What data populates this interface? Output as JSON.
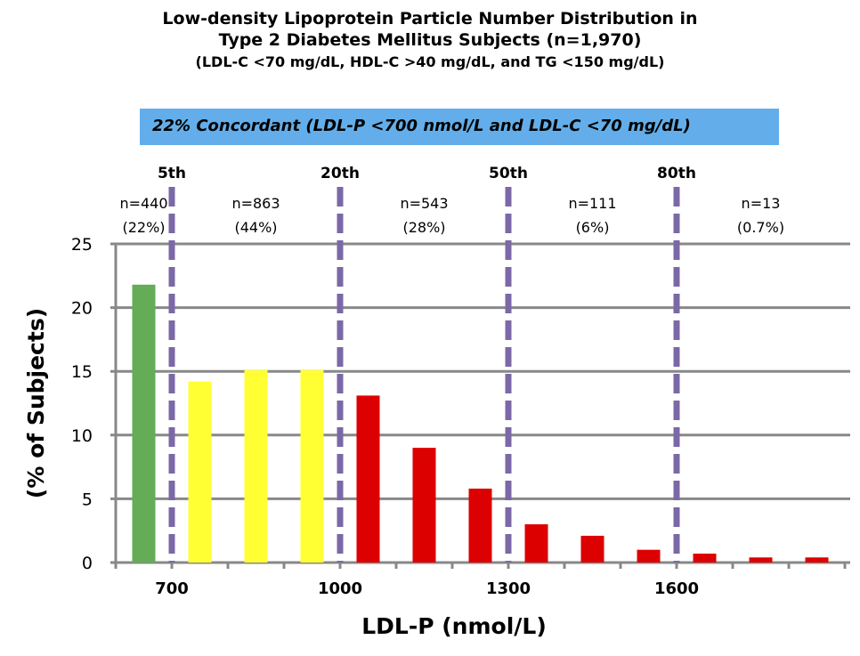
{
  "chart_data": {
    "type": "bar",
    "title": "Low-density Lipoprotein Particle Number Distribution in",
    "title_line2": "Type 2 Diabetes Mellitus Subjects (n=1,970)",
    "subtitle": "(LDL-C <70 mg/dL, HDL-C >40 mg/dL, and TG <150 mg/dL)",
    "banner": "22% Concordant (LDL-P <700 nmol/L  and LDL-C <70 mg/dL)",
    "banner_color": "#63aeea",
    "xlabel": "LDL-P (nmol/L)",
    "ylabel": "(% of Subjects)",
    "xlim": [
      600,
      1900
    ],
    "ylim": [
      0,
      25
    ],
    "x_ticks": [
      700,
      1000,
      1300,
      1600
    ],
    "y_ticks": [
      0,
      5,
      10,
      15,
      20,
      25
    ],
    "grid": true,
    "bin_centers": [
      650,
      750,
      850,
      950,
      1050,
      1150,
      1250,
      1350,
      1450,
      1550,
      1650,
      1750,
      1850
    ],
    "values": [
      21.8,
      14.2,
      15.1,
      15.1,
      13.1,
      9.0,
      5.8,
      3.0,
      2.1,
      1.0,
      0.7,
      0.4,
      0.4
    ],
    "bar_colors": [
      "#64ad56",
      "#ffff33",
      "#ffff33",
      "#ffff33",
      "#dd0000",
      "#dd0000",
      "#dd0000",
      "#dd0000",
      "#dd0000",
      "#dd0000",
      "#dd0000",
      "#dd0000",
      "#dd0000"
    ],
    "percentile_lines": [
      {
        "label": "5th",
        "x": 700
      },
      {
        "label": "20th",
        "x": 1000
      },
      {
        "label": "50th",
        "x": 1300
      },
      {
        "label": "80th",
        "x": 1600
      }
    ],
    "percentile_line_color": "#7b68a6",
    "groups": [
      {
        "n": "n=440",
        "pct": "(22%)",
        "x": 650
      },
      {
        "n": "n=863",
        "pct": "(44%)",
        "x": 850
      },
      {
        "n": "n=543",
        "pct": "(28%)",
        "x": 1150
      },
      {
        "n": "n=111",
        "pct": "(6%)",
        "x": 1450
      },
      {
        "n": "n=13",
        "pct": "(0.7%)",
        "x": 1750
      }
    ]
  }
}
